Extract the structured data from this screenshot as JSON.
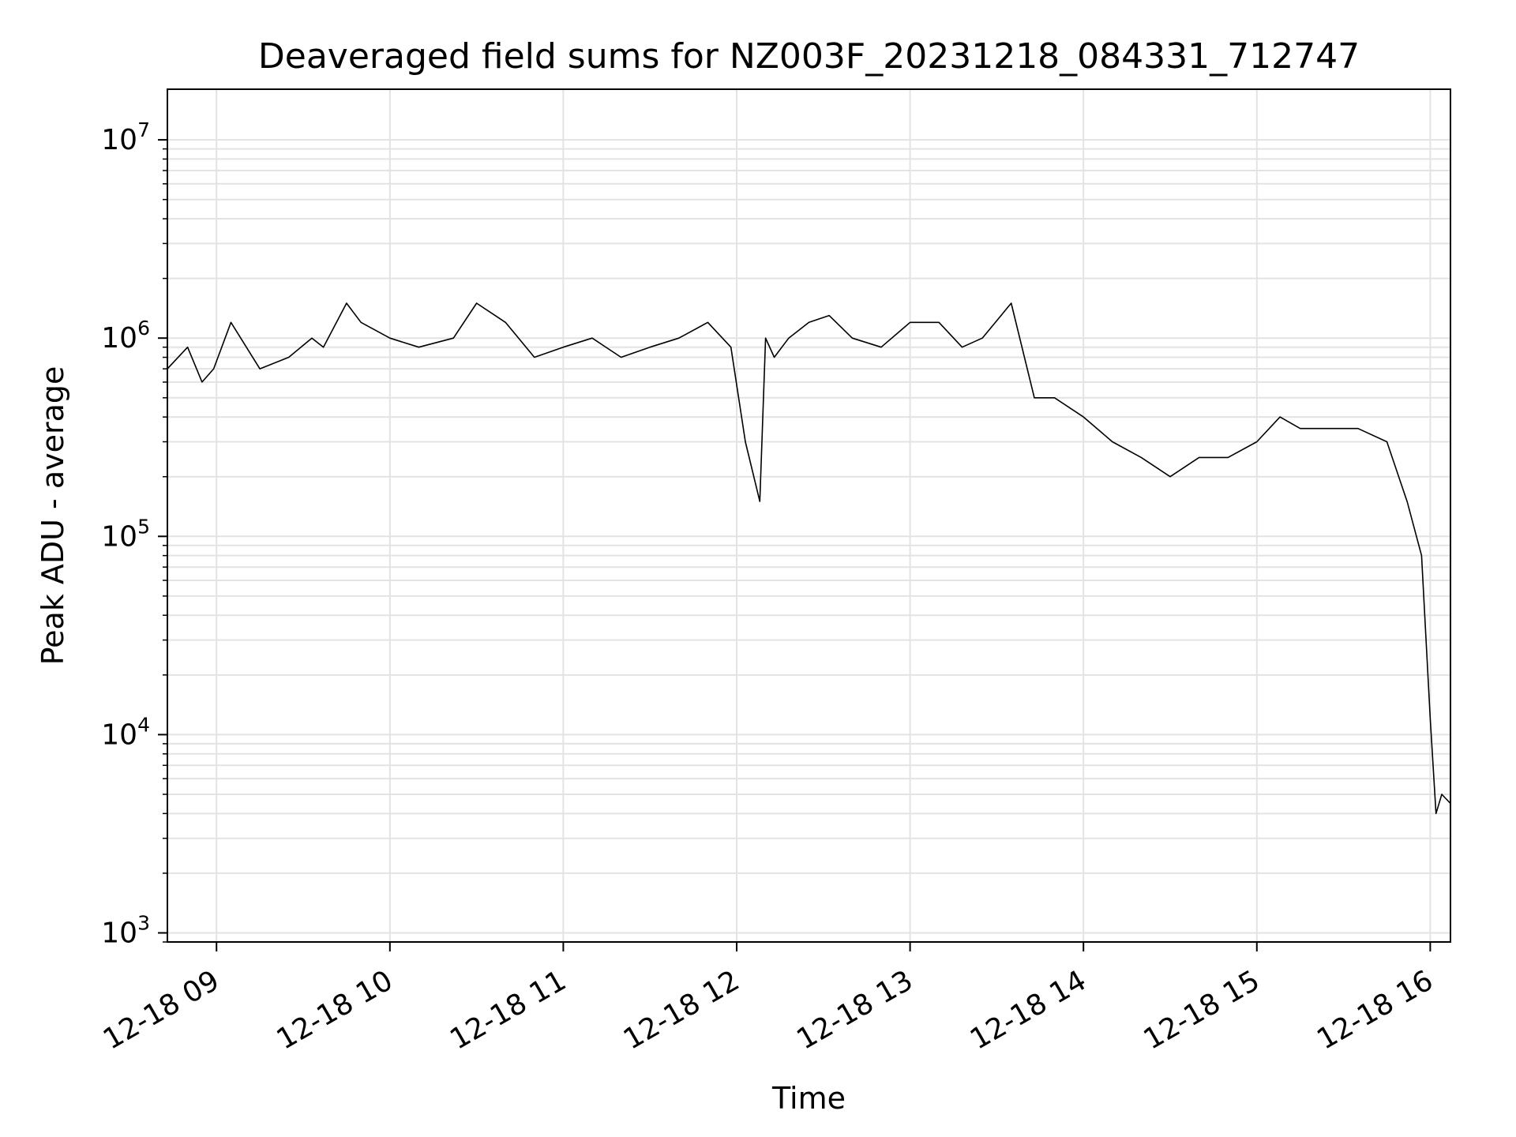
{
  "chart_data": {
    "type": "line",
    "title": "Deaveraged field sums for NZ003F_20231218_084331_712747",
    "xlabel": "Time",
    "ylabel": "Peak ADU - average",
    "y_scale": "log",
    "ylim": [
      900,
      18000000
    ],
    "xlim": [
      "2023-12-18 08:43",
      "2023-12-18 16:07"
    ],
    "grid": true,
    "line_color": "#000000",
    "grid_color": "#e3e3e3",
    "x_ticks": [
      "12-18 09",
      "12-18 10",
      "12-18 11",
      "12-18 12",
      "12-18 13",
      "12-18 14",
      "12-18 15",
      "12-18 16"
    ],
    "x_tick_times": [
      "2023-12-18 09:00",
      "2023-12-18 10:00",
      "2023-12-18 11:00",
      "2023-12-18 12:00",
      "2023-12-18 13:00",
      "2023-12-18 14:00",
      "2023-12-18 15:00",
      "2023-12-18 16:00"
    ],
    "y_ticks": [
      {
        "value": 1000,
        "base": "10",
        "exp": "3"
      },
      {
        "value": 10000,
        "base": "10",
        "exp": "4"
      },
      {
        "value": 100000,
        "base": "10",
        "exp": "5"
      },
      {
        "value": 1000000,
        "base": "10",
        "exp": "6"
      },
      {
        "value": 10000000,
        "base": "10",
        "exp": "7"
      }
    ],
    "series": [
      {
        "x": [
          "2023-12-18 08:43",
          "2023-12-18 08:50",
          "2023-12-18 08:55",
          "2023-12-18 08:59",
          "2023-12-18 09:05",
          "2023-12-18 09:15",
          "2023-12-18 09:25",
          "2023-12-18 09:33",
          "2023-12-18 09:37",
          "2023-12-18 09:45",
          "2023-12-18 09:50",
          "2023-12-18 10:00",
          "2023-12-18 10:10",
          "2023-12-18 10:22",
          "2023-12-18 10:30",
          "2023-12-18 10:40",
          "2023-12-18 10:50",
          "2023-12-18 11:00",
          "2023-12-18 11:10",
          "2023-12-18 11:20",
          "2023-12-18 11:30",
          "2023-12-18 11:40",
          "2023-12-18 11:50",
          "2023-12-18 11:58",
          "2023-12-18 12:03",
          "2023-12-18 12:08",
          "2023-12-18 12:10",
          "2023-12-18 12:13",
          "2023-12-18 12:18",
          "2023-12-18 12:25",
          "2023-12-18 12:32",
          "2023-12-18 12:40",
          "2023-12-18 12:50",
          "2023-12-18 13:00",
          "2023-12-18 13:10",
          "2023-12-18 13:18",
          "2023-12-18 13:25",
          "2023-12-18 13:35",
          "2023-12-18 13:43",
          "2023-12-18 13:50",
          "2023-12-18 14:00",
          "2023-12-18 14:10",
          "2023-12-18 14:20",
          "2023-12-18 14:30",
          "2023-12-18 14:40",
          "2023-12-18 14:50",
          "2023-12-18 15:00",
          "2023-12-18 15:08",
          "2023-12-18 15:15",
          "2023-12-18 15:25",
          "2023-12-18 15:35",
          "2023-12-18 15:45",
          "2023-12-18 15:52",
          "2023-12-18 15:57",
          "2023-12-18 16:00",
          "2023-12-18 16:02",
          "2023-12-18 16:04",
          "2023-12-18 16:07"
        ],
        "y": [
          700000,
          900000,
          600000,
          700000,
          1200000,
          700000,
          800000,
          1000000,
          900000,
          1500000,
          1200000,
          1000000,
          900000,
          1000000,
          1500000,
          1200000,
          800000,
          900000,
          1000000,
          800000,
          900000,
          1000000,
          1200000,
          900000,
          300000,
          150000,
          1000000,
          800000,
          1000000,
          1200000,
          1300000,
          1000000,
          900000,
          1200000,
          1200000,
          900000,
          1000000,
          1500000,
          500000,
          500000,
          400000,
          300000,
          250000,
          200000,
          250000,
          250000,
          300000,
          400000,
          350000,
          350000,
          350000,
          300000,
          150000,
          80000,
          12000,
          4000,
          5000,
          4500
        ]
      }
    ]
  }
}
